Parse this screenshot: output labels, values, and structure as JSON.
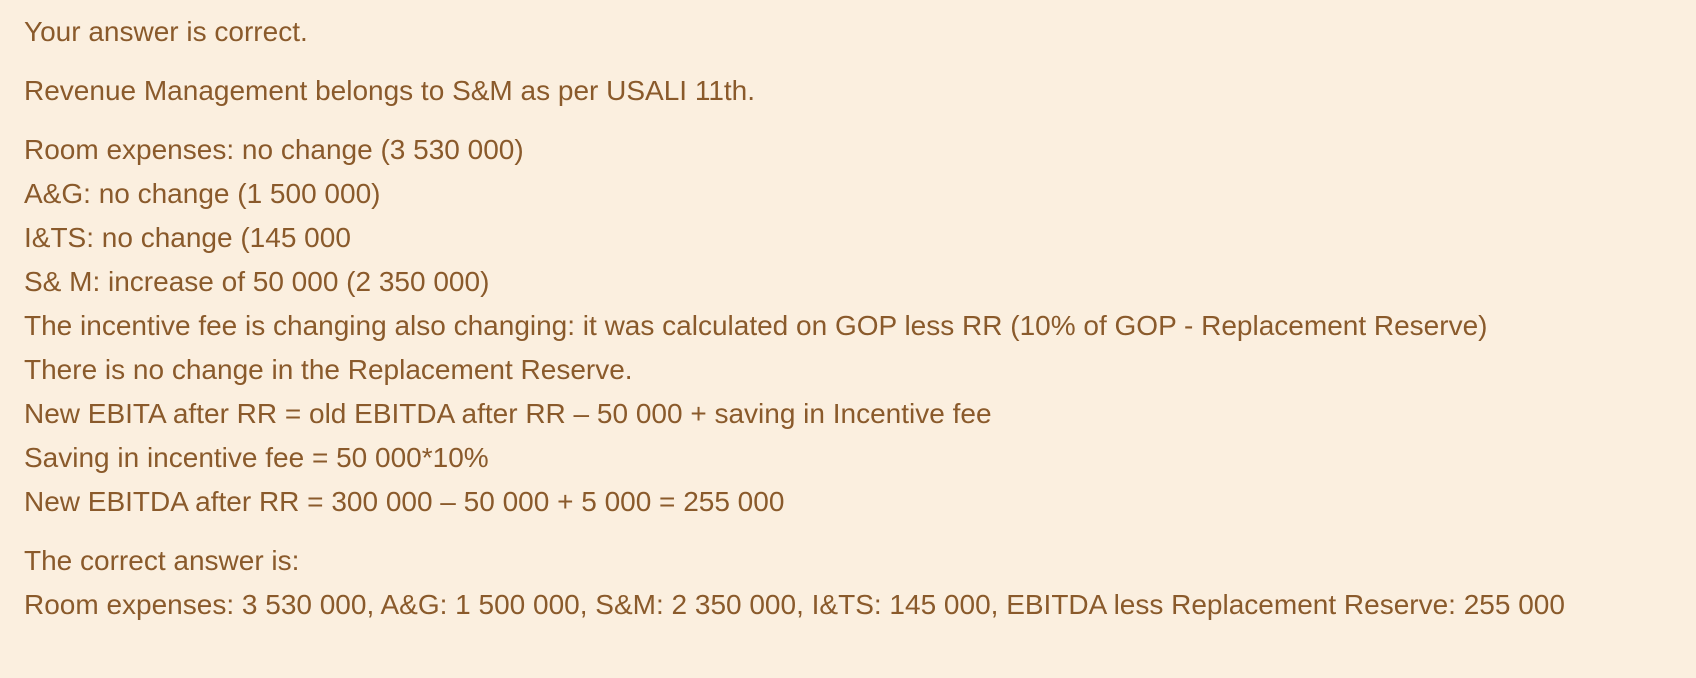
{
  "feedback": {
    "status": "Your answer is correct.",
    "note": "Revenue Management belongs to S&M as per USALI 11th.",
    "explanation": [
      "Room expenses: no change (3 530 000)",
      "A&G: no change (1 500 000)",
      "I&TS: no change (145 000",
      "S& M: increase of 50 000 (2 350 000)",
      "The incentive fee is changing also changing: it was calculated on GOP less RR (10% of GOP - Replacement Reserve)",
      "There is no change in the Replacement Reserve.",
      "New EBITA after RR = old EBITDA after RR – 50 000 + saving in Incentive fee",
      "Saving in incentive fee = 50 000*10%",
      "New EBITDA after RR = 300 000 – 50 000 + 5 000 = 255 000"
    ],
    "correct_answer_label": "The correct answer is:",
    "correct_answer": "Room expenses: 3 530 000, A&G: 1 500 000, S&M: 2 350 000, I&TS: 145 000, EBITDA less Replacement Reserve: 255 000"
  },
  "colors": {
    "background": "#fbefdf",
    "text": "#8a5a2b"
  }
}
